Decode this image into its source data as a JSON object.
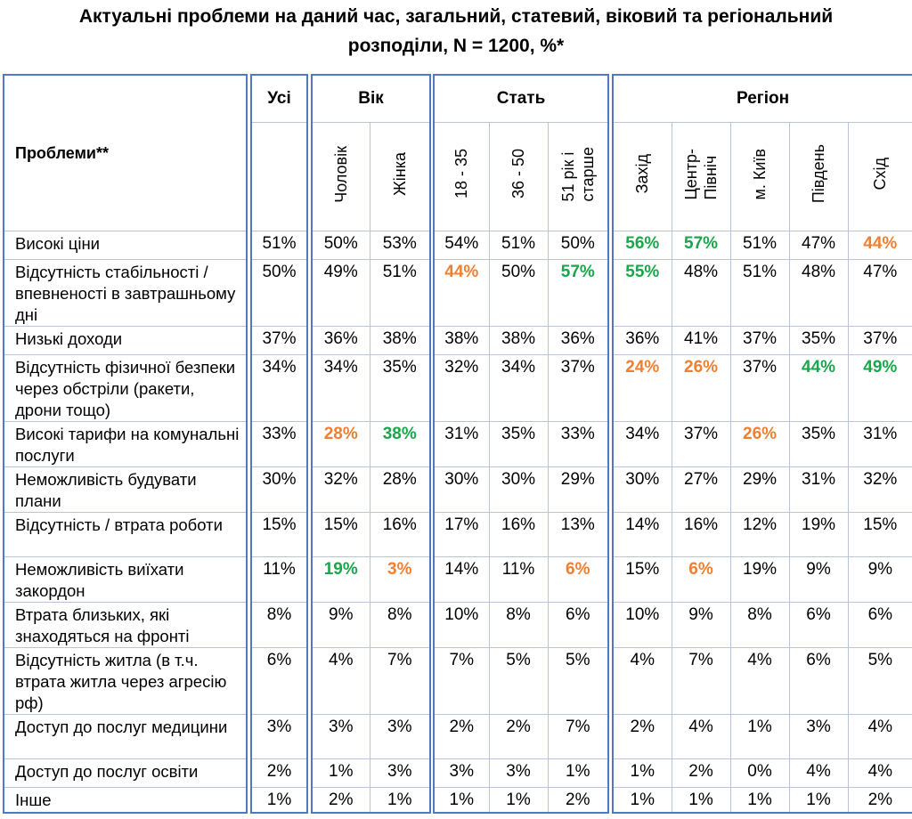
{
  "title_line1": "Актуальні проблеми на даний час, загальний, статевий, віковий та регіональний",
  "title_line2": "розподіли, N = 1200, %*",
  "header": {
    "problems": "Проблеми**",
    "all": "Усі",
    "group_age": "Вік",
    "group_sex": "Стать",
    "group_region": "Регіон",
    "sub": [
      "Чоловік",
      "Жінка",
      "18 - 35",
      "36 - 50",
      "51 рік і старше",
      "Захід",
      "Центр-Північ",
      "м. Київ",
      "Південь",
      "Схід"
    ],
    "sub_lines": [
      [
        "Чоловік"
      ],
      [
        "Жінка"
      ],
      [
        "18 - 35"
      ],
      [
        "36 - 50"
      ],
      [
        "51 рік і",
        "старше"
      ],
      [
        "Захід"
      ],
      [
        "Центр-",
        "Північ"
      ],
      [
        "м. Київ"
      ],
      [
        "Південь"
      ],
      [
        "Схід"
      ]
    ]
  },
  "rows": [
    {
      "label": "Високі ціни",
      "values": [
        "51%",
        "50%",
        "53%",
        "54%",
        "51%",
        "50%",
        "56%",
        "57%",
        "51%",
        "47%",
        "44%"
      ],
      "hl": [
        "",
        "",
        "",
        "",
        "",
        "",
        "hi",
        "hi",
        "",
        "",
        "lo"
      ]
    },
    {
      "label": "Відсутність стабільності / впевненості в завтрашньому дні",
      "values": [
        "50%",
        "49%",
        "51%",
        "44%",
        "50%",
        "57%",
        "55%",
        "48%",
        "51%",
        "48%",
        "47%"
      ],
      "hl": [
        "",
        "",
        "",
        "lo",
        "",
        "hi",
        "hi",
        "",
        "",
        "",
        ""
      ]
    },
    {
      "label": "Низькі доходи",
      "values": [
        "37%",
        "36%",
        "38%",
        "38%",
        "38%",
        "36%",
        "36%",
        "41%",
        "37%",
        "35%",
        "37%"
      ],
      "hl": [
        "",
        "",
        "",
        "",
        "",
        "",
        "",
        "",
        "",
        "",
        ""
      ]
    },
    {
      "label": "Відсутність фізичної безпеки через обстріли (ракети, дрони тощо)",
      "values": [
        "34%",
        "34%",
        "35%",
        "32%",
        "34%",
        "37%",
        "24%",
        "26%",
        "37%",
        "44%",
        "49%"
      ],
      "hl": [
        "",
        "",
        "",
        "",
        "",
        "",
        "lo",
        "lo",
        "",
        "hi",
        "hi"
      ]
    },
    {
      "label": "Високі тарифи на комунальні послуги",
      "values": [
        "33%",
        "28%",
        "38%",
        "31%",
        "35%",
        "33%",
        "34%",
        "37%",
        "26%",
        "35%",
        "31%"
      ],
      "hl": [
        "",
        "lo",
        "hi",
        "",
        "",
        "",
        "",
        "",
        "lo",
        "",
        ""
      ]
    },
    {
      "label": "Неможливість будувати плани",
      "values": [
        "30%",
        "32%",
        "28%",
        "30%",
        "30%",
        "29%",
        "30%",
        "27%",
        "29%",
        "31%",
        "32%"
      ],
      "hl": [
        "",
        "",
        "",
        "",
        "",
        "",
        "",
        "",
        "",
        "",
        ""
      ]
    },
    {
      "label": "Відсутність / втрата роботи",
      "values": [
        "15%",
        "15%",
        "16%",
        "17%",
        "16%",
        "13%",
        "14%",
        "16%",
        "12%",
        "19%",
        "15%"
      ],
      "hl": [
        "",
        "",
        "",
        "",
        "",
        "",
        "",
        "",
        "",
        "",
        ""
      ]
    },
    {
      "label": "Неможливість виїхати закордон",
      "values": [
        "11%",
        "19%",
        "3%",
        "14%",
        "11%",
        "6%",
        "15%",
        "6%",
        "19%",
        "9%",
        "9%"
      ],
      "hl": [
        "",
        "hi",
        "lo",
        "",
        "",
        "lo",
        "",
        "lo",
        "",
        "",
        ""
      ]
    },
    {
      "label": "Втрата близьких, які знаходяться на фронті",
      "values": [
        "8%",
        "9%",
        "8%",
        "10%",
        "8%",
        "6%",
        "10%",
        "9%",
        "8%",
        "6%",
        "6%"
      ],
      "hl": [
        "",
        "",
        "",
        "",
        "",
        "",
        "",
        "",
        "",
        "",
        ""
      ]
    },
    {
      "label": "Відсутність житла (в т.ч. втрата житла через агресію рф)",
      "values": [
        "6%",
        "4%",
        "7%",
        "7%",
        "5%",
        "5%",
        "4%",
        "7%",
        "4%",
        "6%",
        "5%"
      ],
      "hl": [
        "",
        "",
        "",
        "",
        "",
        "",
        "",
        "",
        "",
        "",
        ""
      ]
    },
    {
      "label": "Доступ до послуг медицини",
      "values": [
        "3%",
        "3%",
        "3%",
        "2%",
        "2%",
        "7%",
        "2%",
        "4%",
        "1%",
        "3%",
        "4%"
      ],
      "hl": [
        "",
        "",
        "",
        "",
        "",
        "",
        "",
        "",
        "",
        "",
        ""
      ]
    },
    {
      "label": "Доступ до послуг освіти",
      "values": [
        "2%",
        "1%",
        "3%",
        "3%",
        "3%",
        "1%",
        "1%",
        "2%",
        "0%",
        "4%",
        "4%"
      ],
      "hl": [
        "",
        "",
        "",
        "",
        "",
        "",
        "",
        "",
        "",
        "",
        ""
      ]
    },
    {
      "label": "Інше",
      "values": [
        "1%",
        "2%",
        "1%",
        "1%",
        "1%",
        "2%",
        "1%",
        "1%",
        "1%",
        "1%",
        "2%"
      ],
      "hl": [
        "",
        "",
        "",
        "",
        "",
        "",
        "",
        "",
        "",
        "",
        ""
      ]
    }
  ],
  "colors": {
    "high": "#1aa64a",
    "low": "#f07f30",
    "border": "#4f79c2"
  }
}
